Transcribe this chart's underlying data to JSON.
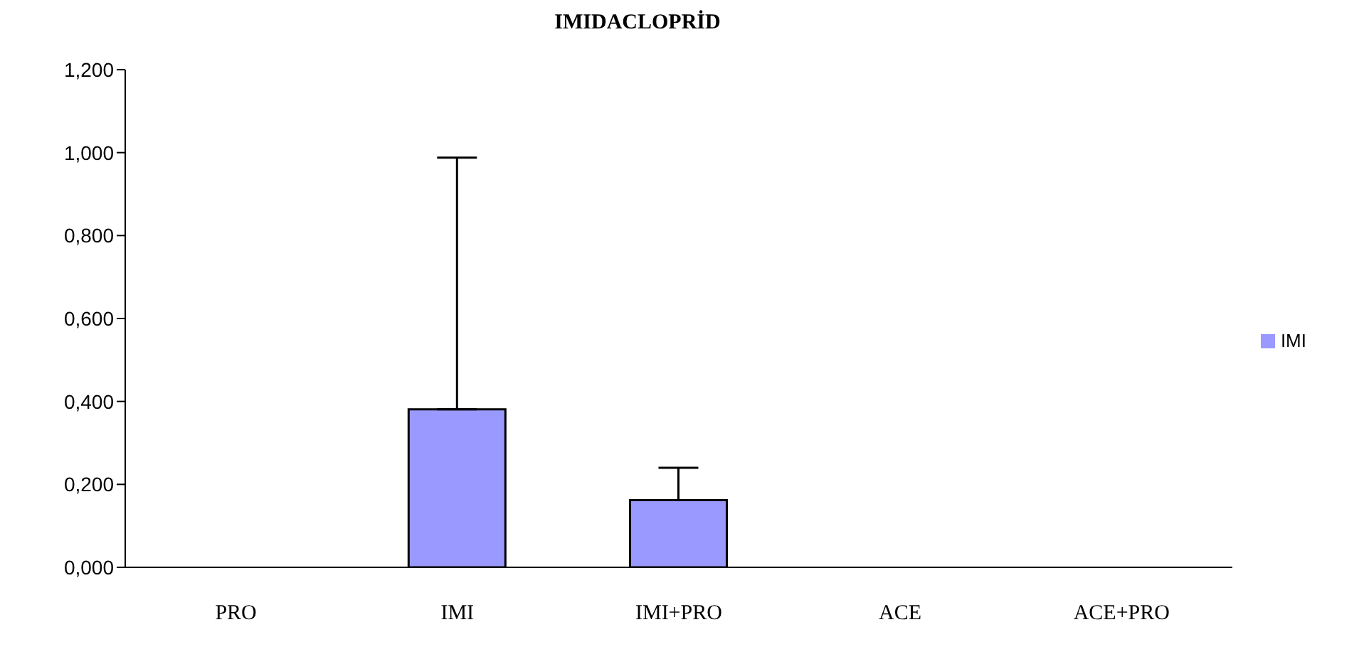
{
  "chart_data": {
    "type": "bar",
    "title": "IMIDACLOPRİD",
    "categories": [
      "PRO",
      "IMI",
      "IMI+PRO",
      "ACE",
      "ACE+PRO"
    ],
    "series": [
      {
        "name": "IMI",
        "color": "#9999ff",
        "values": [
          0,
          0.381,
          0.162,
          0,
          0
        ],
        "errors": [
          null,
          [
            0.381,
            0.988
          ],
          [
            0.162,
            0.24
          ],
          null,
          null
        ]
      }
    ],
    "ylim": [
      0,
      1.2
    ],
    "yticks": [
      {
        "value": 0,
        "label": "0,000"
      },
      {
        "value": 0.2,
        "label": "0,200"
      },
      {
        "value": 0.4,
        "label": "0,400"
      },
      {
        "value": 0.6,
        "label": "0,600"
      },
      {
        "value": 0.8,
        "label": "0,800"
      },
      {
        "value": 1,
        "label": "1,000"
      },
      {
        "value": 1.2,
        "label": "1,200"
      }
    ],
    "grid": false,
    "legend": "right"
  }
}
